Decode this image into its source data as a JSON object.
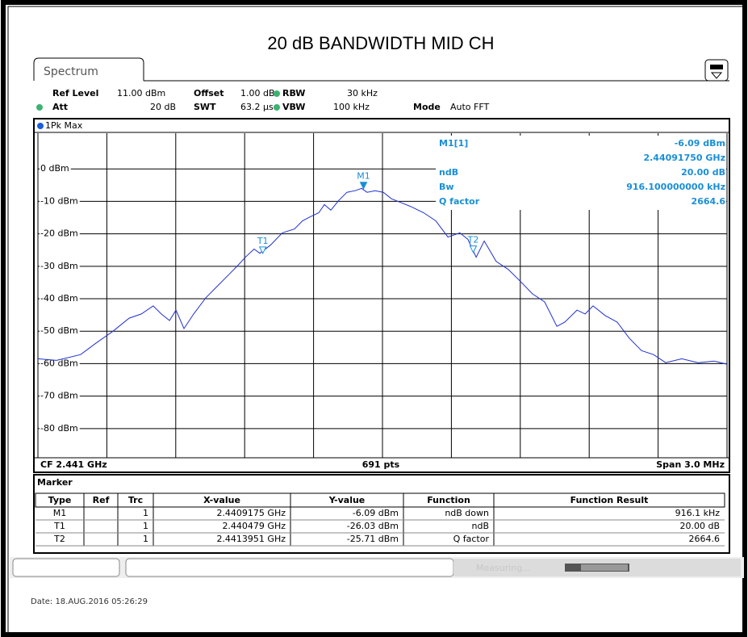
{
  "title": "20 dB BANDWIDTH MID CH",
  "tab": "Spectrum",
  "header": {
    "row1": [
      "Ref Level",
      "11.00 dBm",
      "Offset",
      "1.00 dB",
      "RBW",
      "30 kHz"
    ],
    "row2": [
      "Att",
      "20 dB",
      "SWT",
      "63.2 µs",
      "VBW",
      "100 kHz",
      "Mode",
      "Auto FFT"
    ]
  },
  "trace_label": "1Pk Max",
  "marker_info": [
    {
      "label": "M1[1]",
      "value": "-6.09 dBm"
    },
    {
      "value": "2.44091750 GHz"
    },
    {
      "label": "ndB",
      "value": "20.00 dB"
    },
    {
      "label": "Bw",
      "value": "916.100000000 kHz"
    },
    {
      "label": "Q factor",
      "value": "2664.6"
    }
  ],
  "chart_data": {
    "type": "line",
    "x": [
      2439.5,
      2439.581,
      2439.686,
      2439.756,
      2439.827,
      2439.897,
      2439.95,
      2440.002,
      2440.037,
      2440.073,
      2440.101,
      2440.136,
      2440.178,
      2440.231,
      2440.283,
      2440.336,
      2440.371,
      2440.406,
      2440.441,
      2440.466,
      2440.512,
      2440.564,
      2440.617,
      2440.652,
      2440.687,
      2440.723,
      2440.747,
      2440.775,
      2440.81,
      2440.845,
      2440.881,
      2440.909,
      2440.933,
      2440.968,
      2441.004,
      2441.039,
      2441.074,
      2441.127,
      2441.179,
      2441.232,
      2441.285,
      2441.337,
      2441.372,
      2441.408,
      2441.443,
      2441.495,
      2441.548,
      2441.601,
      2441.653,
      2441.706,
      2441.759,
      2441.794,
      2441.847,
      2441.882,
      2441.917,
      2441.97,
      2442.022,
      2442.075,
      2442.128,
      2442.18,
      2442.233,
      2442.303,
      2442.374,
      2442.444,
      2442.5
    ],
    "series": [
      {
        "color": "#2030d0",
        "values": [
          -58.5,
          -59,
          -57.2,
          -53.5,
          -50,
          -46,
          -44.7,
          -42.2,
          -44.7,
          -46.7,
          -43.5,
          -49.2,
          -44.7,
          -39.7,
          -36,
          -32.2,
          -29.7,
          -27,
          -24.7,
          -26,
          -23.5,
          -19.7,
          -18.5,
          -16,
          -14.7,
          -13.5,
          -11,
          -12.7,
          -9.7,
          -7.2,
          -6.7,
          -6,
          -7.2,
          -6.7,
          -7.2,
          -9.2,
          -10.2,
          -11.7,
          -13.5,
          -16,
          -21,
          -19.7,
          -21.7,
          -27.2,
          -22.2,
          -28.5,
          -31,
          -34.7,
          -38.5,
          -41,
          -48.5,
          -47.2,
          -43.5,
          -44.7,
          -42.2,
          -45.2,
          -47.2,
          -52.2,
          -56,
          -57.2,
          -59.7,
          -58.5,
          -59.7,
          -59.2,
          -60.2
        ]
      }
    ],
    "xlim": [
      2439.5,
      2442.5
    ],
    "xticks": [
      2439.5,
      2439.8,
      2440.1,
      2440.4,
      2440.7,
      2441,
      2441.3,
      2441.6,
      2441.9,
      2442.2,
      2442.5
    ],
    "ylim": [
      -89,
      11
    ],
    "yticks": [
      {
        "value": 0,
        "label": "0 dBm"
      },
      {
        "value": -10,
        "label": "-10 dBm"
      },
      {
        "value": -20,
        "label": "-20 dBm"
      },
      {
        "value": -30,
        "label": "-30 dBm"
      },
      {
        "value": -40,
        "label": "-40 dBm"
      },
      {
        "value": -50,
        "label": "-50 dBm"
      },
      {
        "value": -60,
        "label": "-60 dBm"
      },
      {
        "value": -70,
        "label": "-70 dBm"
      },
      {
        "value": -80,
        "label": "-80 dBm"
      }
    ],
    "grid": true,
    "markers": [
      {
        "label": "M1",
        "x": 2440.9175,
        "y": -6.09,
        "filled": true
      },
      {
        "label": "T1",
        "x": 2440.479,
        "y": -26.03,
        "filled": false
      },
      {
        "label": "T2",
        "x": 2441.3951,
        "y": -25.71,
        "filled": false
      }
    ],
    "marker_color": "#1a8fd6"
  },
  "footer": [
    "CF 2.441 GHz",
    "691 pts",
    "Span 3.0 MHz"
  ],
  "marker_table": {
    "title": "Marker",
    "columns": [
      "Type",
      "Ref",
      "Trc",
      "X-value",
      "Y-value",
      "Function",
      "Function Result"
    ],
    "rows": [
      {
        "type": "M1",
        "trc": "1",
        "x": "2.4409175 GHz",
        "y": "-6.09 dBm",
        "function": "ndB down",
        "result": "916.1 kHz"
      },
      {
        "type": "T1",
        "trc": "1",
        "x": "2.440479 GHz",
        "y": "-26.03 dBm",
        "function": "ndB",
        "result": "20.00 dB"
      },
      {
        "type": "T2",
        "trc": "1",
        "x": "2.4413951 GHz",
        "y": "-25.71 dBm",
        "function": "Q factor",
        "result": "2664.6"
      }
    ]
  },
  "status": "Measuring...",
  "date": "Date: 18.AUG.2016  05:26:29"
}
